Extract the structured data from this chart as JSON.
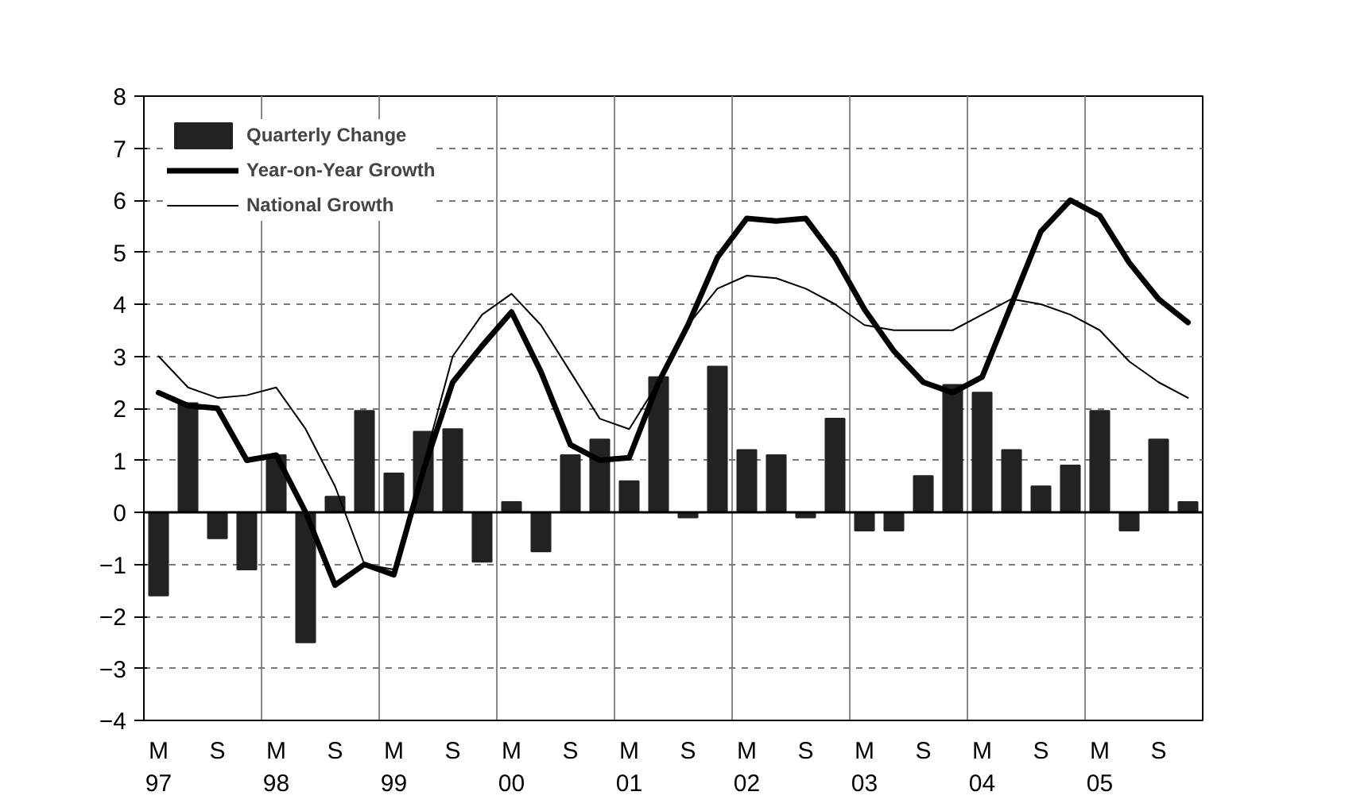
{
  "chart_data": {
    "type": "bar",
    "categories": [
      "M\n97",
      null,
      "S",
      null,
      "M\n98",
      null,
      "S",
      null,
      "M\n99",
      null,
      "S",
      null,
      "M\n00",
      null,
      "S",
      null,
      "M\n01",
      null,
      "S",
      null,
      "M\n02",
      null,
      "S",
      null,
      "M\n03",
      null,
      "S",
      null,
      "M\n04",
      null,
      "S",
      null,
      "M\n05",
      null,
      "S",
      null
    ],
    "series": [
      {
        "name": "Quarterly Change",
        "color": "#222222",
        "values": [
          -1.6,
          2.1,
          -0.5,
          -1.1,
          1.1,
          -2.5,
          0.3,
          1.95,
          0.75,
          1.55,
          1.6,
          -0.95,
          0.2,
          -0.75,
          1.1,
          1.4,
          0.6,
          2.6,
          -0.1,
          2.8,
          1.2,
          1.1,
          -0.1,
          1.8,
          -0.35,
          -0.35,
          0.7,
          2.45,
          2.3,
          1.2,
          0.5,
          0.9,
          1.95,
          -0.35,
          1.4,
          0.2
        ]
      },
      {
        "name": "Year-on-Year Growth",
        "type": "line",
        "color": "#000000",
        "values": [
          2.3,
          2.05,
          2.0,
          1.0,
          1.1,
          0.0,
          -1.4,
          -1.0,
          -1.2,
          0.8,
          2.5,
          3.2,
          3.85,
          2.7,
          1.3,
          1.0,
          1.05,
          2.5,
          3.6,
          4.9,
          5.65,
          5.6,
          5.65,
          4.9,
          3.9,
          3.1,
          2.5,
          2.3,
          2.6,
          4.0,
          5.4,
          6.0,
          5.7,
          4.8,
          4.1,
          3.65
        ]
      },
      {
        "name": "National Growth",
        "type": "line",
        "color": "#000000",
        "values": [
          3.0,
          2.4,
          2.2,
          2.25,
          2.4,
          1.6,
          0.5,
          -1.0,
          -1.1,
          0.9,
          3.0,
          3.8,
          4.2,
          3.6,
          2.7,
          1.8,
          1.6,
          2.5,
          3.6,
          4.3,
          4.55,
          4.5,
          4.3,
          4.0,
          3.6,
          3.5,
          3.5,
          3.5,
          3.8,
          4.1,
          4.0,
          3.8,
          3.5,
          2.9,
          2.5,
          2.2
        ]
      }
    ],
    "ylim": [
      -4,
      8
    ],
    "yticks": [
      -4,
      -3,
      -2,
      -1,
      0,
      1,
      2,
      3,
      4,
      5,
      6,
      7,
      8
    ],
    "grid": true,
    "legend": "top left"
  }
}
